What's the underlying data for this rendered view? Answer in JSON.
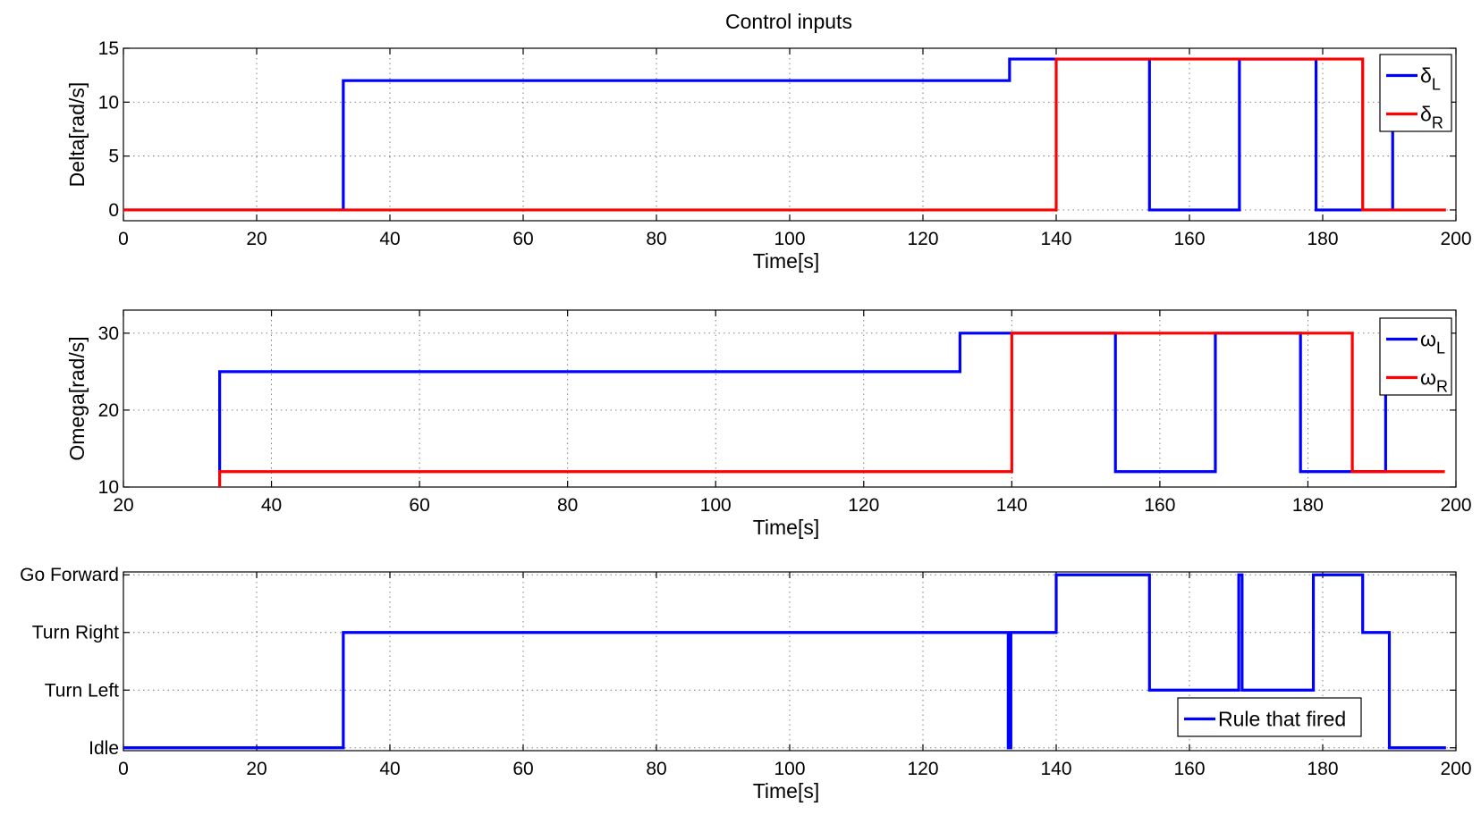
{
  "chart_data": [
    {
      "type": "line",
      "title": "Control inputs",
      "xlabel": "Time[s]",
      "ylabel": "Delta[rad/s]",
      "xlim": [
        0,
        200
      ],
      "ylim": [
        -1,
        15
      ],
      "xticks": [
        "0",
        "20",
        "40",
        "60",
        "80",
        "100",
        "120",
        "140",
        "160",
        "180",
        "200"
      ],
      "yticks": [
        "0",
        "5",
        "10",
        "15"
      ],
      "grid": true,
      "legend_position": "top-right",
      "series": [
        {
          "name": "δ",
          "sub": "L",
          "color": "#0000ff",
          "x": [
            0,
            33,
            33,
            133,
            133,
            154,
            154,
            167.5,
            167.5,
            179,
            179,
            190.5,
            190.5,
            198.5
          ],
          "y": [
            0,
            0,
            12,
            12,
            14,
            14,
            0,
            0,
            14,
            14,
            0,
            0,
            14,
            14
          ]
        },
        {
          "name": "δ",
          "sub": "R",
          "color": "#ff0000",
          "x": [
            0,
            140,
            140,
            186,
            186,
            198.5
          ],
          "y": [
            0,
            0,
            14,
            14,
            0,
            0
          ]
        }
      ]
    },
    {
      "type": "line",
      "title": "",
      "xlabel": "Time[s]",
      "ylabel": "Omega[rad/s]",
      "xlim": [
        20,
        200
      ],
      "ylim": [
        10,
        33
      ],
      "xticks": [
        "20",
        "40",
        "60",
        "80",
        "100",
        "120",
        "140",
        "160",
        "180",
        "200"
      ],
      "yticks": [
        "10",
        "20",
        "30"
      ],
      "grid": true,
      "legend_position": "top-right",
      "series": [
        {
          "name": "ω",
          "sub": "L",
          "color": "#0000ff",
          "x": [
            33,
            33,
            133,
            133,
            154,
            154,
            167.5,
            167.5,
            179,
            179,
            190.5,
            190.5,
            198.5
          ],
          "y": [
            12,
            25,
            25,
            30,
            30,
            12,
            12,
            30,
            30,
            12,
            12,
            30,
            30
          ]
        },
        {
          "name": "ω",
          "sub": "R",
          "color": "#ff0000",
          "x": [
            33,
            33,
            140,
            140,
            186,
            186,
            198.5
          ],
          "y": [
            10,
            12,
            12,
            30,
            30,
            12,
            12
          ]
        }
      ]
    },
    {
      "type": "line",
      "title": "",
      "xlabel": "Time[s]",
      "ylabel": "",
      "xlim": [
        0,
        200
      ],
      "ylim": [
        -0.05,
        3.05
      ],
      "xticks": [
        "0",
        "20",
        "40",
        "60",
        "80",
        "100",
        "120",
        "140",
        "160",
        "180",
        "200"
      ],
      "yticks": [
        "Idle",
        "Turn Left",
        "Turn Right",
        "Go Forward"
      ],
      "grid": true,
      "legend_position": "bottom-right",
      "series": [
        {
          "name": "Rule that fired",
          "sub": "",
          "color": "#0000ff",
          "x": [
            0,
            33,
            33,
            132.8,
            132.8,
            133.2,
            133.2,
            140,
            140,
            154,
            154,
            167.4,
            167.4,
            167.9,
            167.9,
            178.6,
            178.6,
            179.1,
            179.1,
            186,
            186,
            190,
            190,
            198.5
          ],
          "y": [
            0,
            0,
            2,
            2,
            0,
            0,
            2,
            2,
            3,
            3,
            1,
            1,
            3,
            3,
            1,
            1,
            3,
            3,
            3,
            3,
            2,
            2,
            0,
            0
          ]
        }
      ]
    }
  ]
}
